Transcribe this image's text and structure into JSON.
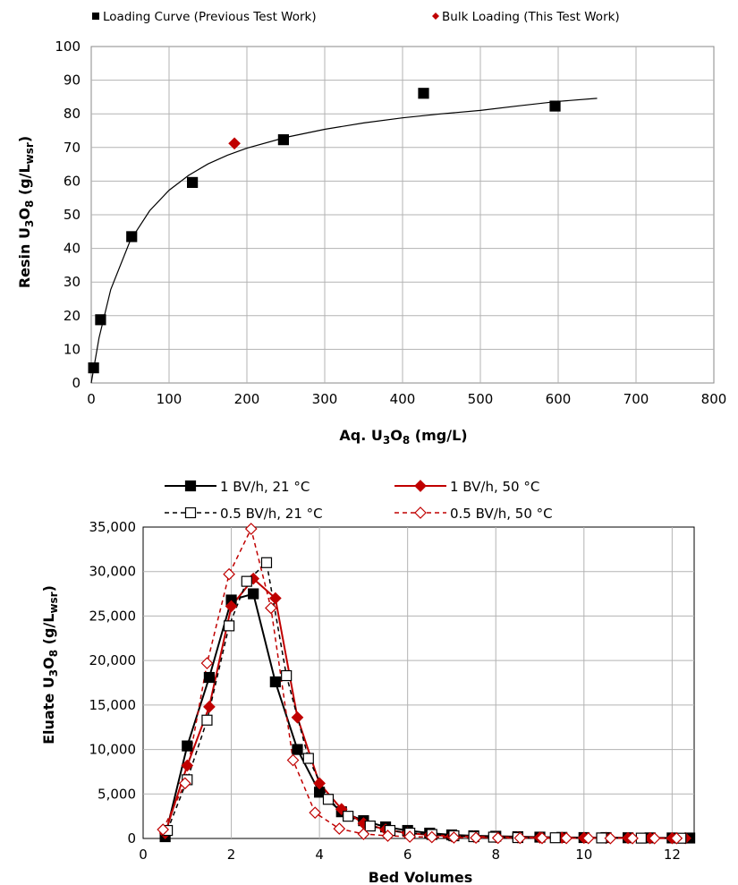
{
  "chart_data": [
    {
      "type": "scatter",
      "xlabel": "Aq. U3O8 (mg/L)",
      "xlabel_parts": {
        "a": "Aq. U",
        "b": "3",
        "c": "O",
        "d": "8",
        "e": " (mg/L)"
      },
      "ylabel": "Resin U3O8 (g/Lwsr)",
      "ylabel_parts": {
        "a": "Resin U",
        "b": "3",
        "c": "O",
        "d": "8",
        "e": " (g/L",
        "f": "wsr",
        "g": ")"
      },
      "xlim": [
        0,
        800
      ],
      "ylim": [
        0,
        100
      ],
      "xticks": [
        0,
        100,
        200,
        300,
        400,
        500,
        600,
        700,
        800
      ],
      "yticks": [
        0,
        10,
        20,
        30,
        40,
        50,
        60,
        70,
        80,
        90,
        100
      ],
      "grid": true,
      "legend_position": "top",
      "colors": {
        "loading": "#000000",
        "bulk": "#c00000",
        "curve": "#000000"
      },
      "series": [
        {
          "name": "Loading Curve (Previous Test Work)",
          "marker": "square",
          "x": [
            3,
            12,
            52,
            130,
            247,
            427,
            596
          ],
          "y": [
            4.5,
            18.8,
            43.5,
            59.6,
            72.3,
            86.1,
            82.3
          ]
        },
        {
          "name": "Bulk Loading (This Test Work)",
          "marker": "diamond",
          "x": [
            184
          ],
          "y": [
            71.2
          ]
        }
      ],
      "fit_curve": {
        "x": [
          0,
          10,
          25,
          50,
          75,
          100,
          125,
          150,
          175,
          200,
          250,
          300,
          350,
          400,
          450,
          500,
          550,
          600,
          650
        ],
        "y": [
          0,
          13.4,
          27.8,
          42.3,
          51.2,
          57.3,
          61.7,
          65.1,
          67.7,
          69.8,
          73.0,
          75.4,
          77.3,
          78.8,
          80.0,
          81.0,
          82.4,
          83.7,
          84.6
        ]
      }
    },
    {
      "type": "line",
      "xlabel": "Bed Volumes",
      "ylabel": "Eluate U3O8 (g/Lwsr)",
      "ylabel_parts": {
        "a": "Eluate U",
        "b": "3",
        "c": "O",
        "d": "8",
        "e": " (g/L",
        "f": "wsr",
        "g": ")"
      },
      "xlim": [
        0,
        12.5
      ],
      "ylim": [
        0,
        35000
      ],
      "xticks": [
        0,
        2,
        4,
        6,
        8,
        10,
        12
      ],
      "yticks": [
        0,
        5000,
        10000,
        15000,
        20000,
        25000,
        30000,
        35000
      ],
      "ytick_labels": [
        "0",
        "5,000",
        "10,000",
        "15,000",
        "20,000",
        "25,000",
        "30,000",
        "35,000"
      ],
      "grid": true,
      "legend_position": "top",
      "series": [
        {
          "name": "1 BV/h, 21 °C",
          "color": "#000000",
          "marker": "square-filled",
          "dashed": false,
          "x": [
            0.5,
            1.0,
            1.5,
            2.0,
            2.5,
            3.0,
            3.5,
            4.0,
            4.5,
            5.0,
            5.5,
            6.0,
            6.5,
            7.0,
            7.5,
            8.0,
            8.5,
            9.0,
            9.5,
            10.0,
            10.5,
            11.0,
            11.5,
            12.0,
            12.4
          ],
          "y": [
            200,
            10400,
            18100,
            26800,
            27500,
            17600,
            10000,
            5200,
            3000,
            2000,
            1300,
            900,
            600,
            400,
            300,
            250,
            200,
            150,
            120,
            100,
            100,
            80,
            70,
            60,
            50
          ]
        },
        {
          "name": "1 BV/h, 50 °C",
          "color": "#c00000",
          "marker": "diamond-filled",
          "dashed": false,
          "x": [
            0.5,
            1.0,
            1.5,
            2.0,
            2.5,
            3.0,
            3.5,
            4.0,
            4.5,
            5.0,
            5.5,
            6.0,
            6.5,
            7.0,
            7.5,
            8.0,
            8.5,
            9.0,
            9.5,
            10.0,
            10.5,
            11.0,
            11.5,
            12.0,
            12.3
          ],
          "y": [
            600,
            8200,
            14800,
            26100,
            29200,
            27000,
            13600,
            6200,
            3300,
            1700,
            1000,
            600,
            400,
            250,
            200,
            150,
            120,
            100,
            80,
            70,
            60,
            50,
            40,
            30,
            30
          ]
        },
        {
          "name": "0.5 BV/h, 21 °C",
          "color": "#000000",
          "marker": "square-open",
          "dashed": true,
          "x": [
            0.55,
            1.0,
            1.45,
            1.95,
            2.35,
            2.8,
            3.25,
            3.75,
            4.2,
            4.65,
            5.15,
            5.6,
            6.05,
            6.55,
            7.05,
            7.5,
            7.95,
            8.5,
            9.35,
            10.4,
            11.3,
            12.2
          ],
          "y": [
            900,
            6600,
            13300,
            23900,
            28900,
            31000,
            18300,
            9000,
            4400,
            2500,
            1400,
            900,
            600,
            450,
            300,
            200,
            150,
            100,
            80,
            60,
            40,
            30
          ]
        },
        {
          "name": "0.5 BV/h, 50 °C",
          "color": "#c00000",
          "marker": "diamond-open",
          "dashed": true,
          "x": [
            0.45,
            0.95,
            1.45,
            1.95,
            2.45,
            2.9,
            3.4,
            3.9,
            4.45,
            5.0,
            5.55,
            6.05,
            6.55,
            7.05,
            7.55,
            8.05,
            8.55,
            9.05,
            9.6,
            10.1,
            10.6,
            11.1,
            11.6,
            12.1
          ],
          "y": [
            1000,
            6200,
            19700,
            29700,
            34800,
            25900,
            8800,
            2900,
            1100,
            500,
            300,
            200,
            150,
            100,
            80,
            60,
            50,
            40,
            30,
            30,
            20,
            20,
            20,
            20
          ]
        }
      ]
    }
  ]
}
